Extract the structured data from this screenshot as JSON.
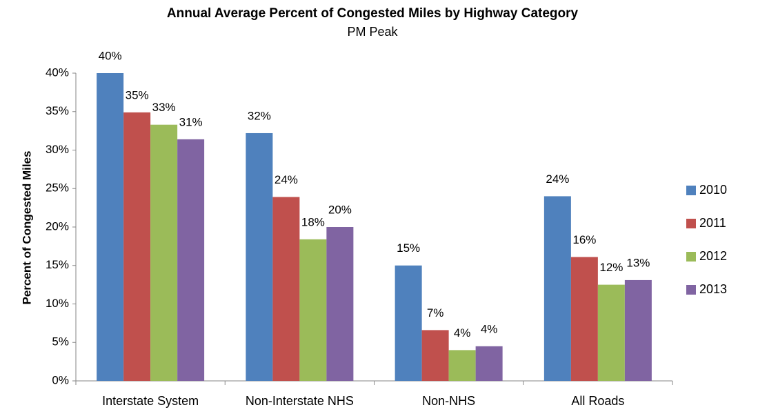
{
  "chart_data": {
    "type": "bar",
    "title": "Annual Average Percent of Congested Miles by Highway Category",
    "subtitle": "PM Peak",
    "y_label": "Percent of Congested Miles",
    "categories": [
      "Interstate System",
      "Non-Interstate NHS",
      "Non-NHS",
      "All Roads"
    ],
    "series": [
      {
        "name": "2010",
        "color": "#4f81bd",
        "values": [
          40,
          32.2,
          15.0,
          24.0
        ],
        "value_labels": [
          "40%",
          "32%",
          "15%",
          "24%"
        ]
      },
      {
        "name": "2011",
        "color": "#c0504d",
        "values": [
          34.9,
          23.9,
          6.6,
          16.1
        ],
        "value_labels": [
          "35%",
          "24%",
          "7%",
          "16%"
        ]
      },
      {
        "name": "2012",
        "color": "#9bbb59",
        "values": [
          33.3,
          18.4,
          4.0,
          12.5
        ],
        "value_labels": [
          "33%",
          "18%",
          "4%",
          "12%"
        ]
      },
      {
        "name": "2013",
        "color": "#8064a2",
        "values": [
          31.4,
          20.0,
          4.5,
          13.1
        ],
        "value_labels": [
          "31%",
          "20%",
          "4%",
          "13%"
        ]
      }
    ],
    "ylim": [
      0,
      40
    ],
    "yticks": [
      {
        "value": 0,
        "label": "0%"
      },
      {
        "value": 5,
        "label": "5%"
      },
      {
        "value": 10,
        "label": "10%"
      },
      {
        "value": 15,
        "label": "15%"
      },
      {
        "value": 20,
        "label": "20%"
      },
      {
        "value": 25,
        "label": "25%"
      },
      {
        "value": 30,
        "label": "30%"
      },
      {
        "value": 35,
        "label": "35%"
      },
      {
        "value": 40,
        "label": "40%"
      }
    ],
    "grid": false,
    "legend": "right"
  }
}
